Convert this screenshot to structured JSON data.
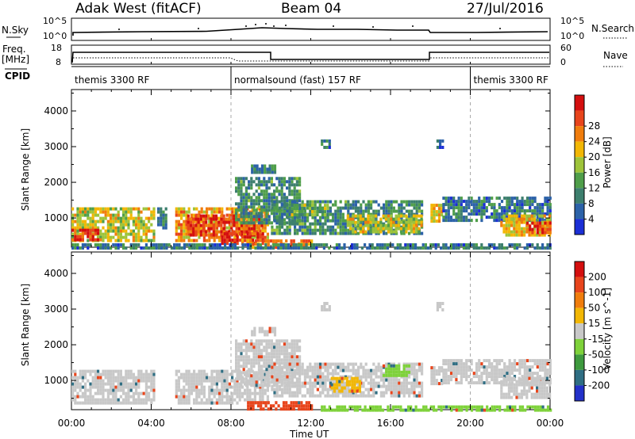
{
  "header": {
    "site": "Adak West (fitACF)",
    "beam": "Beam 04",
    "date": "27/Jul/2016"
  },
  "strip_labels": {
    "nsky": "N.Sky",
    "nsearch": "N.Search",
    "freq": "Freq.",
    "freq_unit": "[MHz]",
    "nave": "Nave",
    "cpid": "CPID",
    "nsky_ticks": [
      "10^5",
      "10^0"
    ],
    "nsearch_ticks": [
      "10^5",
      "10^0"
    ],
    "freq_ticks": [
      "18",
      "8"
    ],
    "nave_ticks": [
      "60",
      "0"
    ]
  },
  "cpid_segments": [
    {
      "label": "themis 3300 RF",
      "start_hour": 0
    },
    {
      "label": "normalsound (fast) 157 RF",
      "start_hour": 8
    },
    {
      "label": "themis 3300 RF",
      "start_hour": 20
    }
  ],
  "time_axis": {
    "label": "Time UT",
    "ticks": [
      "00:00",
      "04:00",
      "08:00",
      "12:00",
      "16:00",
      "20:00",
      "00:00"
    ],
    "range_hours": [
      0,
      24
    ]
  },
  "chart_data": [
    {
      "type": "heatmap",
      "name": "power",
      "ylabel": "Slant Range [km]",
      "ylim": [
        180,
        4600
      ],
      "yticks": [
        1000,
        2000,
        3000,
        4000
      ],
      "x_unit": "hours UT",
      "colorbar": {
        "label": "Power [dB]",
        "ticks": [
          "4",
          "8",
          "12",
          "16",
          "20",
          "24",
          "28"
        ],
        "colors": [
          "#1b2fd6",
          "#2c62a8",
          "#3d7f6e",
          "#4f9e4a",
          "#9ec43a",
          "#f2b705",
          "#f07d0d",
          "#e8451c",
          "#d40f0f"
        ]
      },
      "regions": [
        {
          "t0": 0.0,
          "t1": 4.2,
          "r0": 400,
          "r1": 1300,
          "level": 18
        },
        {
          "t0": 0.0,
          "t1": 1.5,
          "r0": 350,
          "r1": 700,
          "level": 28
        },
        {
          "t0": 4.3,
          "t1": 4.8,
          "r0": 700,
          "r1": 1300,
          "level": 8
        },
        {
          "t0": 5.2,
          "t1": 9.8,
          "r0": 350,
          "r1": 1300,
          "level": 22
        },
        {
          "t0": 5.8,
          "t1": 9.5,
          "r0": 500,
          "r1": 1100,
          "level": 28
        },
        {
          "t0": 7.5,
          "t1": 9.6,
          "r0": 250,
          "r1": 600,
          "level": 28
        },
        {
          "t0": 8.2,
          "t1": 11.5,
          "r0": 900,
          "r1": 2150,
          "level": 10
        },
        {
          "t0": 9.0,
          "t1": 10.2,
          "r0": 2250,
          "r1": 2500,
          "level": 9
        },
        {
          "t0": 8.8,
          "t1": 12.0,
          "r0": 200,
          "r1": 400,
          "level": 24
        },
        {
          "t0": 10.0,
          "t1": 17.6,
          "r0": 600,
          "r1": 1500,
          "level": 10
        },
        {
          "t0": 13.8,
          "t1": 17.5,
          "r0": 600,
          "r1": 1100,
          "level": 18
        },
        {
          "t0": 11.0,
          "t1": 12.8,
          "r0": 1100,
          "r1": 1400,
          "level": 14
        },
        {
          "t0": 18.0,
          "t1": 18.6,
          "r0": 900,
          "r1": 1400,
          "level": 20
        },
        {
          "t0": 18.6,
          "t1": 24.0,
          "r0": 900,
          "r1": 1600,
          "level": 8
        },
        {
          "t0": 21.5,
          "t1": 24.0,
          "r0": 500,
          "r1": 1100,
          "level": 20
        },
        {
          "t0": 22.8,
          "t1": 24.0,
          "r0": 600,
          "r1": 900,
          "level": 28
        },
        {
          "t0": 0.0,
          "t1": 24.0,
          "r0": 180,
          "r1": 290,
          "level": 8
        },
        {
          "t0": 12.5,
          "t1": 13.0,
          "r0": 2950,
          "r1": 3200,
          "level": 8
        },
        {
          "t0": 18.3,
          "t1": 18.6,
          "r0": 3000,
          "r1": 3200,
          "level": 6
        }
      ]
    },
    {
      "type": "heatmap",
      "name": "velocity",
      "ylabel": "Slant Range [km]",
      "ylim": [
        180,
        4600
      ],
      "yticks": [
        1000,
        2000,
        3000,
        4000
      ],
      "x_unit": "hours UT",
      "colorbar": {
        "label": "Velocity [m s^-1]",
        "ticks": [
          "200",
          "100",
          "50",
          "15",
          "-15",
          "-50",
          "-100",
          "-200"
        ],
        "colors": [
          "#2331c9",
          "#2f6e83",
          "#3e9a3e",
          "#7ed23a",
          "#c8c8c8",
          "#f2b705",
          "#f07d0d",
          "#e8451c",
          "#d40f0f"
        ]
      },
      "regions": [
        {
          "t0": 0.0,
          "t1": 4.2,
          "r0": 400,
          "r1": 1300,
          "level": 0
        },
        {
          "t0": 5.2,
          "t1": 9.8,
          "r0": 350,
          "r1": 1300,
          "level": 0
        },
        {
          "t0": 8.2,
          "t1": 11.5,
          "r0": 900,
          "r1": 2150,
          "level": 0
        },
        {
          "t0": 9.0,
          "t1": 10.2,
          "r0": 2250,
          "r1": 2500,
          "level": 0
        },
        {
          "t0": 8.8,
          "t1": 12.0,
          "r0": 200,
          "r1": 420,
          "level": -180
        },
        {
          "t0": 10.0,
          "t1": 17.6,
          "r0": 600,
          "r1": 1500,
          "level": 0
        },
        {
          "t0": 13.0,
          "t1": 14.5,
          "r0": 700,
          "r1": 1100,
          "level": -40
        },
        {
          "t0": 15.6,
          "t1": 17.0,
          "r0": 1100,
          "r1": 1450,
          "level": 40
        },
        {
          "t0": 12.5,
          "t1": 24.0,
          "r0": 180,
          "r1": 300,
          "level": 30
        },
        {
          "t0": 18.0,
          "t1": 18.6,
          "r0": 900,
          "r1": 1400,
          "level": 0
        },
        {
          "t0": 18.6,
          "t1": 24.0,
          "r0": 900,
          "r1": 1600,
          "level": 0
        },
        {
          "t0": 21.5,
          "t1": 24.0,
          "r0": 500,
          "r1": 1100,
          "level": 0
        },
        {
          "t0": 12.5,
          "t1": 13.0,
          "r0": 2950,
          "r1": 3200,
          "level": 0
        },
        {
          "t0": 18.3,
          "t1": 18.6,
          "r0": 3000,
          "r1": 3200,
          "level": 0
        }
      ]
    }
  ]
}
